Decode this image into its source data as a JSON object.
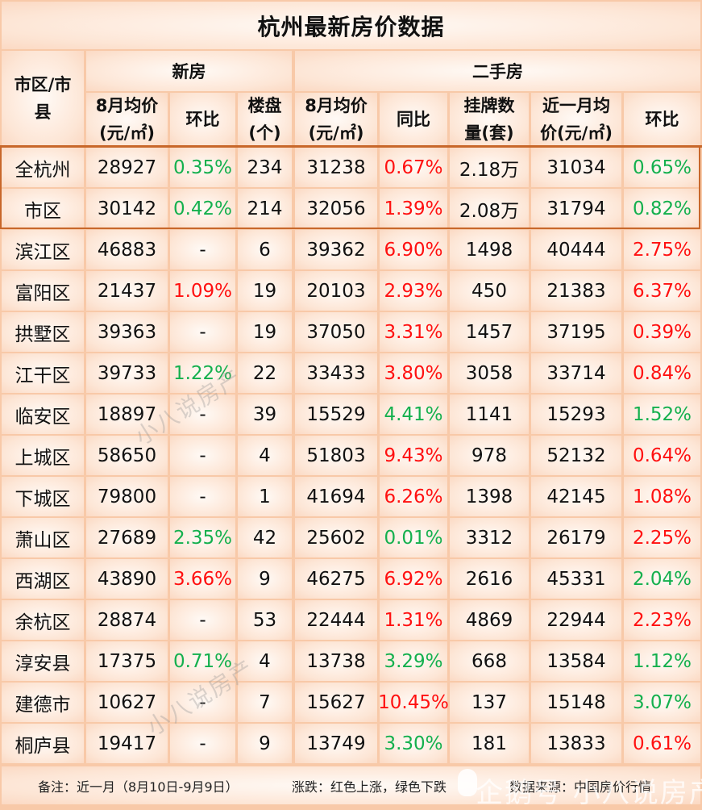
{
  "title": "杭州最新房价数据",
  "header": {
    "region_col": "市区/市县",
    "region_col_line1": "市区/市",
    "region_col_line2": "县",
    "group_new": "新房",
    "group_second": "二手房",
    "columns": [
      {
        "line1": "8月均价",
        "line2": "(元/㎡)"
      },
      {
        "line1": "环比",
        "line2": ""
      },
      {
        "line1": "楼盘",
        "line2": "(个)"
      },
      {
        "line1": "8月均价",
        "line2": "(元/㎡)"
      },
      {
        "line1": "同比",
        "line2": ""
      },
      {
        "line1": "挂牌数",
        "line2": "量(套)"
      },
      {
        "line1": "近一月均",
        "line2": "价(元/㎡)"
      },
      {
        "line1": "环比",
        "line2": ""
      }
    ]
  },
  "colors": {
    "up": "#ff1010",
    "down": "#14b04e",
    "border": "#f8c9a8",
    "highlight_border": "#c8672a"
  },
  "rows": [
    {
      "region": "全杭州",
      "new_price": "28927",
      "new_mom": "0.35%",
      "new_mom_dir": "down",
      "projects": "234",
      "sec_price": "31238",
      "sec_yoy": "0.67%",
      "sec_yoy_dir": "up",
      "listings": "2.18万",
      "sec_month_price": "31034",
      "sec_mom": "0.65%",
      "sec_mom_dir": "down"
    },
    {
      "region": "市区",
      "new_price": "30142",
      "new_mom": "0.42%",
      "new_mom_dir": "down",
      "projects": "214",
      "sec_price": "32056",
      "sec_yoy": "1.39%",
      "sec_yoy_dir": "up",
      "listings": "2.08万",
      "sec_month_price": "31794",
      "sec_mom": "0.82%",
      "sec_mom_dir": "down"
    },
    {
      "region": "滨江区",
      "new_price": "46883",
      "new_mom": "-",
      "new_mom_dir": "neutral",
      "projects": "6",
      "sec_price": "39362",
      "sec_yoy": "6.90%",
      "sec_yoy_dir": "up",
      "listings": "1498",
      "sec_month_price": "40444",
      "sec_mom": "2.75%",
      "sec_mom_dir": "up"
    },
    {
      "region": "富阳区",
      "new_price": "21437",
      "new_mom": "1.09%",
      "new_mom_dir": "up",
      "projects": "19",
      "sec_price": "20103",
      "sec_yoy": "2.93%",
      "sec_yoy_dir": "up",
      "listings": "450",
      "sec_month_price": "21383",
      "sec_mom": "6.37%",
      "sec_mom_dir": "up"
    },
    {
      "region": "拱墅区",
      "new_price": "39363",
      "new_mom": "-",
      "new_mom_dir": "neutral",
      "projects": "19",
      "sec_price": "37050",
      "sec_yoy": "3.31%",
      "sec_yoy_dir": "up",
      "listings": "1457",
      "sec_month_price": "37195",
      "sec_mom": "0.39%",
      "sec_mom_dir": "up"
    },
    {
      "region": "江干区",
      "new_price": "39733",
      "new_mom": "1.22%",
      "new_mom_dir": "down",
      "projects": "22",
      "sec_price": "33433",
      "sec_yoy": "3.80%",
      "sec_yoy_dir": "up",
      "listings": "3058",
      "sec_month_price": "33714",
      "sec_mom": "0.84%",
      "sec_mom_dir": "up"
    },
    {
      "region": "临安区",
      "new_price": "18897",
      "new_mom": "-",
      "new_mom_dir": "neutral",
      "projects": "39",
      "sec_price": "15529",
      "sec_yoy": "4.41%",
      "sec_yoy_dir": "down",
      "listings": "1141",
      "sec_month_price": "15293",
      "sec_mom": "1.52%",
      "sec_mom_dir": "down"
    },
    {
      "region": "上城区",
      "new_price": "58650",
      "new_mom": "-",
      "new_mom_dir": "neutral",
      "projects": "4",
      "sec_price": "51803",
      "sec_yoy": "9.43%",
      "sec_yoy_dir": "up",
      "listings": "978",
      "sec_month_price": "52132",
      "sec_mom": "0.64%",
      "sec_mom_dir": "up"
    },
    {
      "region": "下城区",
      "new_price": "79800",
      "new_mom": "-",
      "new_mom_dir": "neutral",
      "projects": "1",
      "sec_price": "41694",
      "sec_yoy": "6.26%",
      "sec_yoy_dir": "up",
      "listings": "1398",
      "sec_month_price": "42145",
      "sec_mom": "1.08%",
      "sec_mom_dir": "up"
    },
    {
      "region": "萧山区",
      "new_price": "27689",
      "new_mom": "2.35%",
      "new_mom_dir": "down",
      "projects": "42",
      "sec_price": "25602",
      "sec_yoy": "0.01%",
      "sec_yoy_dir": "down",
      "listings": "3312",
      "sec_month_price": "26179",
      "sec_mom": "2.25%",
      "sec_mom_dir": "up"
    },
    {
      "region": "西湖区",
      "new_price": "43890",
      "new_mom": "3.66%",
      "new_mom_dir": "up",
      "projects": "9",
      "sec_price": "46275",
      "sec_yoy": "6.92%",
      "sec_yoy_dir": "up",
      "listings": "2616",
      "sec_month_price": "45331",
      "sec_mom": "2.04%",
      "sec_mom_dir": "down"
    },
    {
      "region": "余杭区",
      "new_price": "28874",
      "new_mom": "-",
      "new_mom_dir": "neutral",
      "projects": "53",
      "sec_price": "22444",
      "sec_yoy": "1.31%",
      "sec_yoy_dir": "up",
      "listings": "4869",
      "sec_month_price": "22944",
      "sec_mom": "2.23%",
      "sec_mom_dir": "up"
    },
    {
      "region": "淳安县",
      "new_price": "17375",
      "new_mom": "0.71%",
      "new_mom_dir": "down",
      "projects": "4",
      "sec_price": "13738",
      "sec_yoy": "3.29%",
      "sec_yoy_dir": "down",
      "listings": "668",
      "sec_month_price": "13584",
      "sec_mom": "1.12%",
      "sec_mom_dir": "down"
    },
    {
      "region": "建德市",
      "new_price": "10627",
      "new_mom": "-",
      "new_mom_dir": "neutral",
      "projects": "7",
      "sec_price": "15627",
      "sec_yoy": "10.45%",
      "sec_yoy_dir": "up",
      "listings": "137",
      "sec_month_price": "15148",
      "sec_mom": "3.07%",
      "sec_mom_dir": "down"
    },
    {
      "region": "桐庐县",
      "new_price": "19417",
      "new_mom": "-",
      "new_mom_dir": "neutral",
      "projects": "9",
      "sec_price": "13749",
      "sec_yoy": "3.30%",
      "sec_yoy_dir": "down",
      "listings": "181",
      "sec_month_price": "13833",
      "sec_mom": "0.61%",
      "sec_mom_dir": "up"
    }
  ],
  "footer": {
    "note": "备注：近一月（8月10日-9月9日）",
    "legend": "涨跌：红色上涨，绿色下跌",
    "source": "数据来源：中国房价行情"
  },
  "watermarks": {
    "diagonal": "小八说房产",
    "bottom": "企鹅号 小八说房产"
  }
}
